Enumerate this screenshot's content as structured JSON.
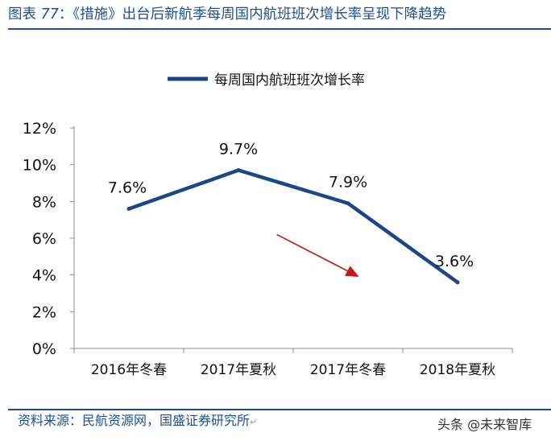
{
  "figure": {
    "title_prefix": "图表",
    "title_number": "77",
    "title_colon": "：",
    "title_text": "《措施》出台后新航季每周国内航班班次增长率呈现下降趋势",
    "source": "资料来源：民航资源网，国盛证券研究所",
    "watermark": "头条 @未来智库"
  },
  "colors": {
    "line": "#1c4687",
    "arrow": "#c0191b",
    "title": "#1e4f91",
    "axis": "#8c8c8c"
  },
  "chart_data": {
    "type": "line",
    "title": "",
    "xlabel": "",
    "ylabel": "",
    "categories": [
      "2016年冬春",
      "2017年夏秋",
      "2017年冬春",
      "2018年夏秋"
    ],
    "series": [
      {
        "name": "每周国内航班班次增长率",
        "values": [
          7.6,
          9.7,
          7.9,
          3.6
        ],
        "labels": [
          "7.6%",
          "9.7%",
          "7.9%",
          "3.6%"
        ]
      }
    ],
    "ylim": [
      0,
      12
    ],
    "yticks": [
      0,
      2,
      4,
      6,
      8,
      10,
      12
    ],
    "ytick_labels": [
      "0%",
      "2%",
      "4%",
      "6%",
      "8%",
      "10%",
      "12%"
    ],
    "grid": false,
    "legend": "top-center",
    "annotations": [
      {
        "type": "arrow",
        "meaning": "下降趋势",
        "from": [
          1.35,
          6.2
        ],
        "to": [
          2.1,
          3.9
        ]
      }
    ]
  }
}
